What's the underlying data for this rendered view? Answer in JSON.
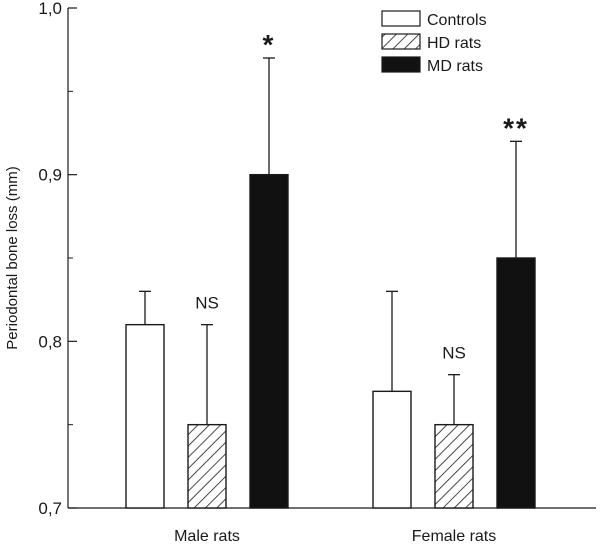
{
  "chart_data": {
    "type": "bar",
    "ylabel": "Periodontal bone loss (mm)",
    "xlabel": "",
    "ylim": [
      0.7,
      1.0
    ],
    "yticks": [
      "0,7",
      "0,8",
      "0,9",
      "1,0"
    ],
    "categories": [
      "Male rats",
      "Female rats"
    ],
    "series": [
      {
        "name": "Controls",
        "values": [
          0.81,
          0.77
        ],
        "errors": [
          0.02,
          0.06
        ],
        "annotations": [
          "",
          ""
        ],
        "fill": "white"
      },
      {
        "name": "HD rats",
        "values": [
          0.75,
          0.75
        ],
        "errors": [
          0.06,
          0.03
        ],
        "annotations": [
          "NS",
          "NS"
        ],
        "fill": "hatch"
      },
      {
        "name": "MD rats",
        "values": [
          0.9,
          0.85
        ],
        "errors": [
          0.07,
          0.07
        ],
        "annotations": [
          "*",
          "**"
        ],
        "fill": "black"
      }
    ],
    "legend_position": "top-right",
    "grid": false
  },
  "colors": {
    "stroke": "#1a1a1a",
    "solid": "#111111",
    "background": "#ffffff"
  }
}
